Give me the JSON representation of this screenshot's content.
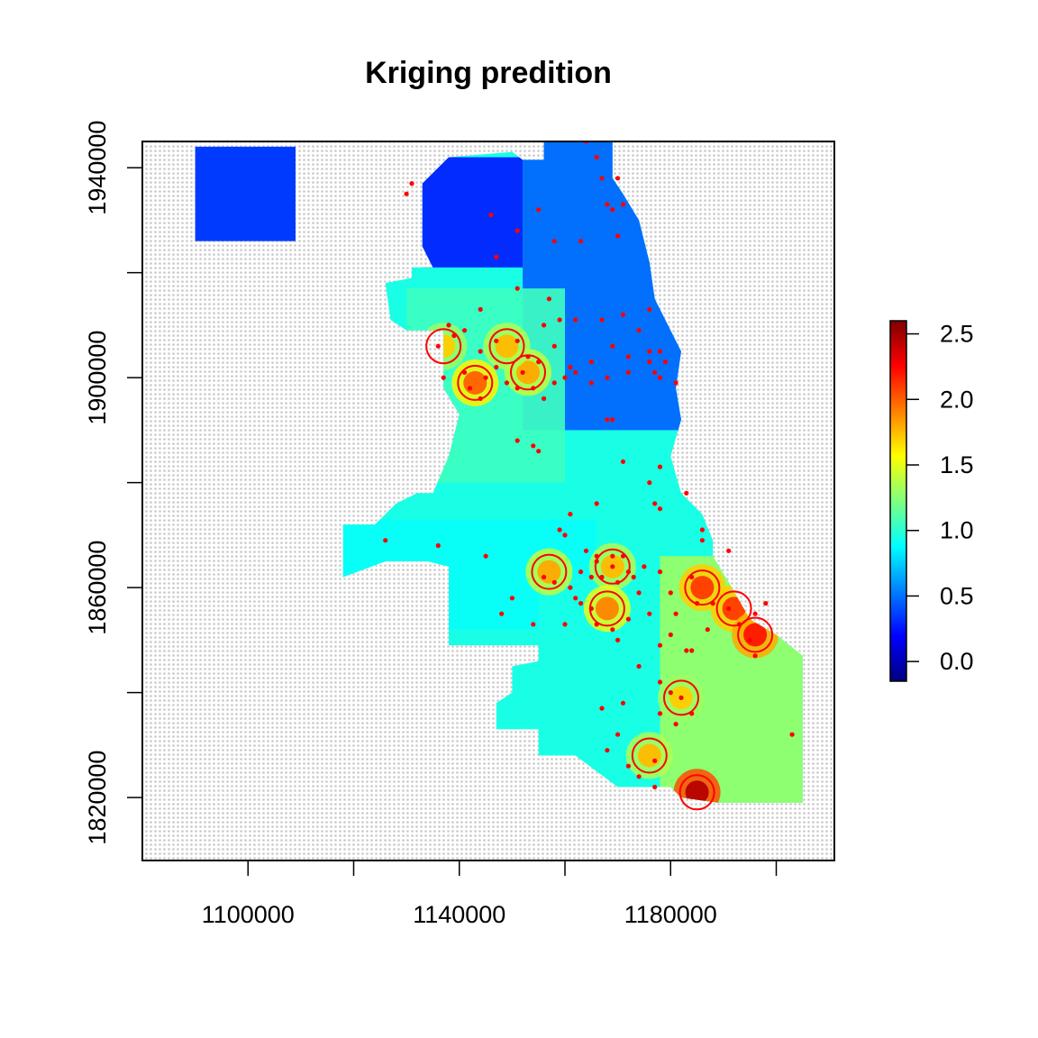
{
  "chart_data": {
    "type": "heatmap",
    "title": "Kriging predition",
    "xlabel": "",
    "ylabel": "",
    "xlim": [
      1080000,
      1211000
    ],
    "ylim": [
      1808000,
      1945000
    ],
    "x_ticks": [
      1100000,
      1120000,
      1140000,
      1160000,
      1180000,
      1200000
    ],
    "x_tick_labels": [
      "1100000",
      "",
      "1140000",
      "",
      "1180000",
      ""
    ],
    "y_ticks": [
      1820000,
      1840000,
      1860000,
      1880000,
      1900000,
      1920000,
      1940000
    ],
    "y_tick_labels": [
      "1820000",
      "",
      "1860000",
      "",
      "1900000",
      "",
      "1940000"
    ],
    "colorbar": {
      "range": [
        -0.15,
        2.6
      ],
      "ticks": [
        0.0,
        0.5,
        1.0,
        1.5,
        2.0,
        2.5
      ],
      "tick_labels": [
        "0.0",
        "0.5",
        "1.0",
        "1.5",
        "2.0",
        "2.5"
      ],
      "colors": [
        "#00007F",
        "#0000FF",
        "#007FFF",
        "#00FFFF",
        "#7FFF7F",
        "#FFFF00",
        "#FF7F00",
        "#FF0000",
        "#7F0000"
      ]
    },
    "contour_level": 1.6,
    "contour_color": "#FF0000",
    "point_color": "#FF0000",
    "background_grid": "light gray dotted grid outside study area",
    "region_values": [
      {
        "area": "far northwest",
        "x": [
          1090000,
          1109000
        ],
        "y": [
          1926000,
          1945000
        ],
        "value": 0.35
      },
      {
        "area": "north",
        "x": [
          1133000,
          1152000
        ],
        "y": [
          1921000,
          1942000
        ],
        "value": 0.25
      },
      {
        "area": "northeast lakefront",
        "x": [
          1152000,
          1182000
        ],
        "y": [
          1890000,
          1945000
        ],
        "value": 0.45
      },
      {
        "area": "west side",
        "x": [
          1130000,
          1160000
        ],
        "y": [
          1880000,
          1917000
        ],
        "value": 1.05
      },
      {
        "area": "southwest",
        "x": [
          1110000,
          1166000
        ],
        "y": [
          1852000,
          1873000
        ],
        "value": 0.9
      },
      {
        "area": "south central",
        "x": [
          1155000,
          1180000
        ],
        "y": [
          1824000,
          1862000
        ],
        "value": 0.95
      },
      {
        "area": "southeast",
        "x": [
          1178000,
          1205000
        ],
        "y": [
          1810000,
          1866000
        ],
        "value": 1.3
      }
    ],
    "hotspots": [
      {
        "x": 1143000,
        "y": 1899000,
        "value": 2.0
      },
      {
        "x": 1153000,
        "y": 1901000,
        "value": 1.8
      },
      {
        "x": 1149000,
        "y": 1906000,
        "value": 1.75
      },
      {
        "x": 1137000,
        "y": 1906000,
        "value": 1.7
      },
      {
        "x": 1169000,
        "y": 1864000,
        "value": 1.75
      },
      {
        "x": 1157000,
        "y": 1863000,
        "value": 1.8
      },
      {
        "x": 1168000,
        "y": 1856000,
        "value": 1.9
      },
      {
        "x": 1186000,
        "y": 1860000,
        "value": 2.1
      },
      {
        "x": 1192000,
        "y": 1856000,
        "value": 2.1
      },
      {
        "x": 1196000,
        "y": 1851000,
        "value": 2.2
      },
      {
        "x": 1182000,
        "y": 1839000,
        "value": 1.7
      },
      {
        "x": 1176000,
        "y": 1828000,
        "value": 1.75
      },
      {
        "x": 1185000,
        "y": 1821000,
        "value": 2.45
      }
    ],
    "points": [
      [
        1130000,
        1935000
      ],
      [
        1131000,
        1937000
      ],
      [
        1146000,
        1931000
      ],
      [
        1151000,
        1928000
      ],
      [
        1155000,
        1932000
      ],
      [
        1164000,
        1945000
      ],
      [
        1166000,
        1942000
      ],
      [
        1167000,
        1938000
      ],
      [
        1170000,
        1938000
      ],
      [
        1168000,
        1933000
      ],
      [
        1169000,
        1932000
      ],
      [
        1171000,
        1933000
      ],
      [
        1163000,
        1926000
      ],
      [
        1170000,
        1927000
      ],
      [
        1158000,
        1926000
      ],
      [
        1147000,
        1923000
      ],
      [
        1151000,
        1917000
      ],
      [
        1157000,
        1915000
      ],
      [
        1144000,
        1913000
      ],
      [
        1138000,
        1910000
      ],
      [
        1139000,
        1908000
      ],
      [
        1141000,
        1909000
      ],
      [
        1136000,
        1906000
      ],
      [
        1144000,
        1905000
      ],
      [
        1147000,
        1907000
      ],
      [
        1151000,
        1907000
      ],
      [
        1156000,
        1910000
      ],
      [
        1159000,
        1911000
      ],
      [
        1162000,
        1911000
      ],
      [
        1167000,
        1911000
      ],
      [
        1169000,
        1906000
      ],
      [
        1171000,
        1912000
      ],
      [
        1172000,
        1904000
      ],
      [
        1165000,
        1903000
      ],
      [
        1161000,
        1902000
      ],
      [
        1158000,
        1906000
      ],
      [
        1155000,
        1903000
      ],
      [
        1153000,
        1904000
      ],
      [
        1152000,
        1901000
      ],
      [
        1151000,
        1898000
      ],
      [
        1154000,
        1898000
      ],
      [
        1149000,
        1899000
      ],
      [
        1147000,
        1902000
      ],
      [
        1145000,
        1900000
      ],
      [
        1142000,
        1898000
      ],
      [
        1141000,
        1901000
      ],
      [
        1144000,
        1896000
      ],
      [
        1137000,
        1900000
      ],
      [
        1156000,
        1896000
      ],
      [
        1158000,
        1899000
      ],
      [
        1160000,
        1900000
      ],
      [
        1162000,
        1901000
      ],
      [
        1165000,
        1899000
      ],
      [
        1168000,
        1900000
      ],
      [
        1176000,
        1903000
      ],
      [
        1176000,
        1905000
      ],
      [
        1177000,
        1901000
      ],
      [
        1178000,
        1905000
      ],
      [
        1179000,
        1903000
      ],
      [
        1181000,
        1899000
      ],
      [
        1178000,
        1900000
      ],
      [
        1172000,
        1901000
      ],
      [
        1174000,
        1909000
      ],
      [
        1176000,
        1913000
      ],
      [
        1168000,
        1892000
      ],
      [
        1169000,
        1892000
      ],
      [
        1151000,
        1888000
      ],
      [
        1154000,
        1887000
      ],
      [
        1155000,
        1886000
      ],
      [
        1171000,
        1884000
      ],
      [
        1178000,
        1883000
      ],
      [
        1176000,
        1880000
      ],
      [
        1177000,
        1876000
      ],
      [
        1178000,
        1875000
      ],
      [
        1183000,
        1878000
      ],
      [
        1186000,
        1871000
      ],
      [
        1186000,
        1869000
      ],
      [
        1191000,
        1867000
      ],
      [
        1166000,
        1876000
      ],
      [
        1161000,
        1874000
      ],
      [
        1159000,
        1871000
      ],
      [
        1160000,
        1870000
      ],
      [
        1164000,
        1867000
      ],
      [
        1166000,
        1866000
      ],
      [
        1169000,
        1866000
      ],
      [
        1171000,
        1866000
      ],
      [
        1166000,
        1865000
      ],
      [
        1169000,
        1864000
      ],
      [
        1172000,
        1863000
      ],
      [
        1170000,
        1861000
      ],
      [
        1167000,
        1862000
      ],
      [
        1163000,
        1863000
      ],
      [
        1156000,
        1862000
      ],
      [
        1158000,
        1861000
      ],
      [
        1161000,
        1860000
      ],
      [
        1162000,
        1858000
      ],
      [
        1163000,
        1857000
      ],
      [
        1165000,
        1856000
      ],
      [
        1166000,
        1853000
      ],
      [
        1169000,
        1852000
      ],
      [
        1170000,
        1850000
      ],
      [
        1172000,
        1854000
      ],
      [
        1174000,
        1859000
      ],
      [
        1176000,
        1855000
      ],
      [
        1178000,
        1849000
      ],
      [
        1180000,
        1851000
      ],
      [
        1183000,
        1848000
      ],
      [
        1184000,
        1848000
      ],
      [
        1187000,
        1852000
      ],
      [
        1188000,
        1857000
      ],
      [
        1191000,
        1856000
      ],
      [
        1193000,
        1853000
      ],
      [
        1195000,
        1850000
      ],
      [
        1196000,
        1855000
      ],
      [
        1198000,
        1857000
      ],
      [
        1196000,
        1847000
      ],
      [
        1180000,
        1859000
      ],
      [
        1181000,
        1855000
      ],
      [
        1185000,
        1857000
      ],
      [
        1184000,
        1862000
      ],
      [
        1178000,
        1863000
      ],
      [
        1175000,
        1864000
      ],
      [
        1173000,
        1862000
      ],
      [
        1174000,
        1845000
      ],
      [
        1178000,
        1842000
      ],
      [
        1180000,
        1840000
      ],
      [
        1182000,
        1839000
      ],
      [
        1178000,
        1836000
      ],
      [
        1181000,
        1834000
      ],
      [
        1184000,
        1836000
      ],
      [
        1171000,
        1838000
      ],
      [
        1167000,
        1837000
      ],
      [
        1170000,
        1832000
      ],
      [
        1168000,
        1829000
      ],
      [
        1172000,
        1826000
      ],
      [
        1174000,
        1824000
      ],
      [
        1177000,
        1822000
      ],
      [
        1177000,
        1827000
      ],
      [
        1126000,
        1869000
      ],
      [
        1136000,
        1868000
      ],
      [
        1145000,
        1866000
      ],
      [
        1150000,
        1858000
      ],
      [
        1148000,
        1855000
      ],
      [
        1154000,
        1853000
      ],
      [
        1160000,
        1853000
      ],
      [
        1165000,
        1862000
      ],
      [
        1203000,
        1832000
      ]
    ]
  }
}
